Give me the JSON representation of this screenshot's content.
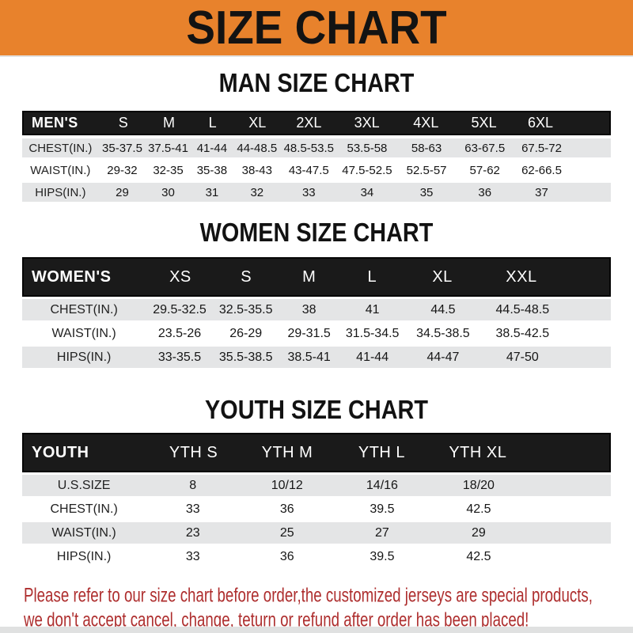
{
  "title": "SIZE CHART",
  "colors": {
    "banner_orange": "#e8822c",
    "band_black": "#1a1a1a",
    "row_gray": "#e4e5e6",
    "footer_red": "#ae2e2e"
  },
  "sections": [
    {
      "heading": "MAN SIZE CHART",
      "label": "MEN'S",
      "columns": [
        "S",
        "M",
        "L",
        "XL",
        "2XL",
        "3XL",
        "4XL",
        "5XL",
        "6XL"
      ],
      "rows": [
        {
          "label": "CHEST(IN.)",
          "values": [
            "35-37.5",
            "37.5-41",
            "41-44",
            "44-48.5",
            "48.5-53.5",
            "53.5-58",
            "58-63",
            "63-67.5",
            "67.5-72"
          ]
        },
        {
          "label": "WAIST(IN.)",
          "values": [
            "29-32",
            "32-35",
            "35-38",
            "38-43",
            "43-47.5",
            "47.5-52.5",
            "52.5-57",
            "57-62",
            "62-66.5"
          ]
        },
        {
          "label": "HIPS(IN.)",
          "values": [
            "29",
            "30",
            "31",
            "32",
            "33",
            "34",
            "35",
            "36",
            "37"
          ]
        }
      ]
    },
    {
      "heading": "WOMEN SIZE CHART",
      "label": "WOMEN'S",
      "columns": [
        "XS",
        "S",
        "M",
        "L",
        "XL",
        "XXL"
      ],
      "rows": [
        {
          "label": "CHEST(IN.)",
          "values": [
            "29.5-32.5",
            "32.5-35.5",
            "38",
            "41",
            "44.5",
            "44.5-48.5"
          ]
        },
        {
          "label": "WAIST(IN.)",
          "values": [
            "23.5-26",
            "26-29",
            "29-31.5",
            "31.5-34.5",
            "34.5-38.5",
            "38.5-42.5"
          ]
        },
        {
          "label": "HIPS(IN.)",
          "values": [
            "33-35.5",
            "35.5-38.5",
            "38.5-41",
            "41-44",
            "44-47",
            "47-50"
          ]
        }
      ]
    },
    {
      "heading": "YOUTH SIZE CHART",
      "label": "YOUTH",
      "columns": [
        "YTH S",
        "YTH M",
        "YTH L",
        "YTH XL"
      ],
      "rows": [
        {
          "label": "U.S.SIZE",
          "values": [
            "8",
            "10/12",
            "14/16",
            "18/20"
          ]
        },
        {
          "label": "CHEST(IN.)",
          "values": [
            "33",
            "36",
            "39.5",
            "42.5"
          ]
        },
        {
          "label": "WAIST(IN.)",
          "values": [
            "23",
            "25",
            "27",
            "29"
          ]
        },
        {
          "label": "HIPS(IN.)",
          "values": [
            "33",
            "36",
            "39.5",
            "42.5"
          ]
        }
      ]
    }
  ],
  "footer": {
    "line1": "Please refer to our size chart before order,the customized jerseys are special products,",
    "line2": "we don't accept cancel, change, teturn or refund after order has been placed!"
  }
}
